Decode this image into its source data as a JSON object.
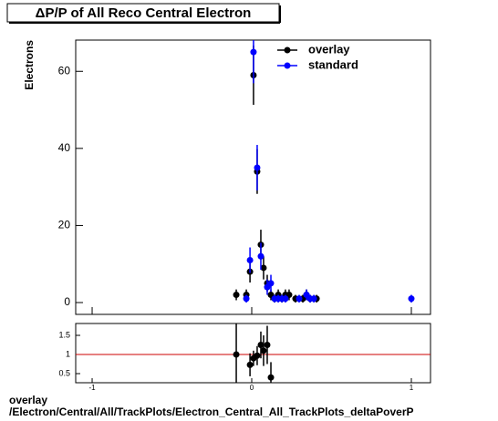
{
  "chart_data": [
    {
      "type": "scatter",
      "title": "ΔP/P of All Reco Central  Electron",
      "ylabel": "Electrons",
      "xlim": [
        -1.103,
        1.12
      ],
      "ylim": [
        -3.07,
        68.1
      ],
      "xticks": [
        -1,
        0,
        1
      ],
      "yticks": [
        0,
        20,
        40,
        60
      ],
      "legend": "top-right",
      "series": [
        {
          "name": "overlay",
          "color": "#000000",
          "x": [
            -0.097,
            -0.034,
            -0.011,
            0.011,
            0.034,
            0.057,
            0.074,
            0.097,
            0.12,
            0.143,
            0.166,
            0.189,
            0.211,
            0.234,
            0.274,
            0.32,
            0.343,
            0.366,
            0.406
          ],
          "values": [
            2,
            2,
            8,
            59,
            34,
            15,
            9,
            5,
            2,
            1,
            2,
            1,
            2,
            2,
            1,
            1,
            2,
            1,
            1
          ],
          "errors": [
            1.4,
            1.4,
            2.8,
            7.7,
            5.8,
            3.9,
            3,
            2.2,
            1.4,
            1,
            1.4,
            1,
            1.4,
            1.4,
            1,
            1,
            1.4,
            1,
            1
          ]
        },
        {
          "name": "standard",
          "color": "#0000ff",
          "x": [
            -0.034,
            -0.011,
            0.011,
            0.034,
            0.057,
            0.097,
            0.12,
            0.143,
            0.166,
            0.189,
            0.211,
            0.297,
            0.343,
            0.366,
            0.389,
            1.0
          ],
          "values": [
            1,
            11,
            65,
            35,
            12,
            4,
            5,
            1,
            1,
            1,
            1,
            1,
            2,
            1,
            1,
            1
          ],
          "errors": [
            1,
            3.3,
            8.1,
            5.9,
            3.5,
            2,
            2.2,
            1,
            1,
            1,
            1,
            1,
            1.4,
            1,
            1,
            1
          ]
        }
      ]
    },
    {
      "type": "scatter",
      "xlim": [
        -1.103,
        1.12
      ],
      "ylim": [
        0.262,
        1.81
      ],
      "xticks": [
        -1,
        0,
        1
      ],
      "yticks": [
        0.5,
        1,
        1.5
      ],
      "hline": 1,
      "hline_color": "#cc0000",
      "series": [
        {
          "color": "#000000",
          "x": [
            -0.097,
            -0.011,
            0.011,
            0.034,
            0.057,
            0.074,
            0.097,
            0.12
          ],
          "values": [
            1,
            0.73,
            0.9,
            0.97,
            1.25,
            1.1,
            1.25,
            0.4
          ],
          "errors": [
            0.8,
            0.3,
            0.2,
            0.25,
            0.35,
            0.4,
            0.5,
            0.4
          ]
        }
      ]
    }
  ],
  "footer": {
    "line1": "overlay",
    "line2": "/Electron/Central/All/TrackPlots/Electron_Central_All_TrackPlots_deltaPoverP"
  }
}
